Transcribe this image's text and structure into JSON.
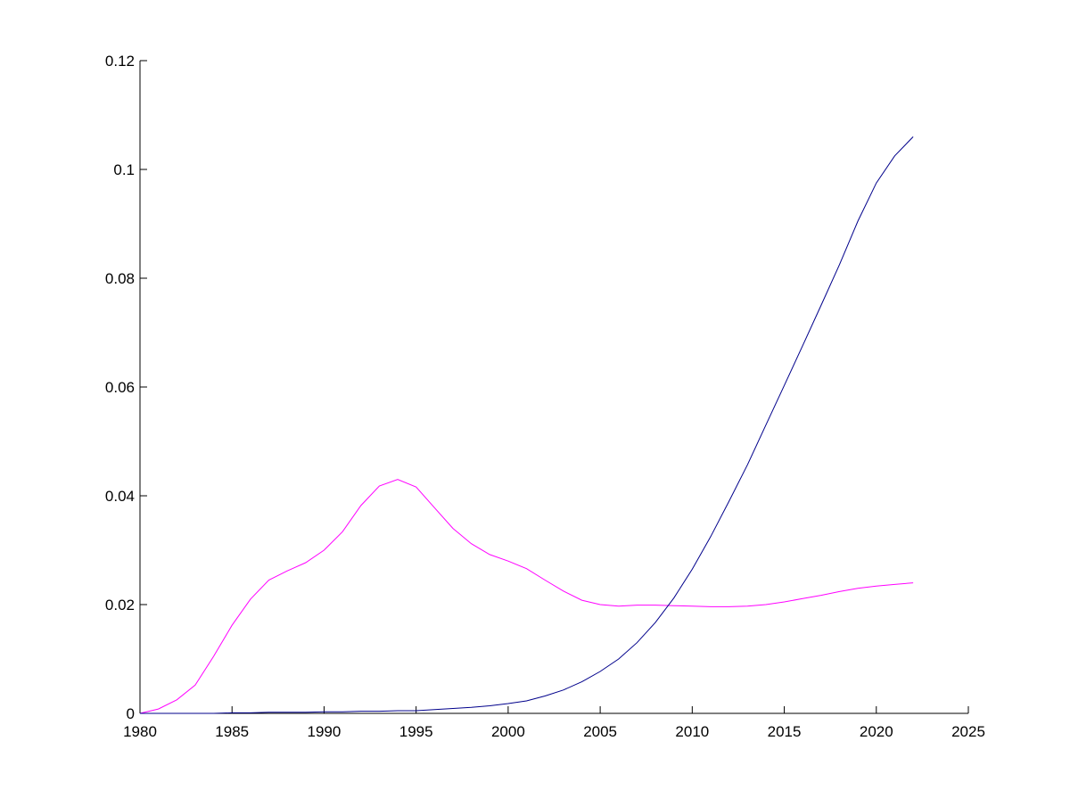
{
  "chart_data": {
    "type": "line",
    "title": "",
    "xlabel": "",
    "ylabel": "",
    "xlim": [
      1980,
      2025
    ],
    "ylim": [
      0,
      0.12
    ],
    "xticks": [
      1980,
      1985,
      1990,
      1995,
      2000,
      2005,
      2010,
      2015,
      2020,
      2025
    ],
    "yticks": [
      0,
      0.02,
      0.04,
      0.06,
      0.08,
      0.1,
      0.12
    ],
    "xtick_labels": [
      "1980",
      "1985",
      "1990",
      "1995",
      "2000",
      "2005",
      "2010",
      "2015",
      "2020",
      "2025"
    ],
    "ytick_labels": [
      "0",
      "0.02",
      "0.04",
      "0.06",
      "0.08",
      "0.1",
      "0.12"
    ],
    "grid": false,
    "legend": "none",
    "x": [
      1980,
      1981,
      1982,
      1983,
      1984,
      1985,
      1986,
      1987,
      1988,
      1989,
      1990,
      1991,
      1992,
      1993,
      1994,
      1995,
      1996,
      1997,
      1998,
      1999,
      2000,
      2001,
      2002,
      2003,
      2004,
      2005,
      2006,
      2007,
      2008,
      2009,
      2010,
      2011,
      2012,
      2013,
      2014,
      2015,
      2016,
      2017,
      2018,
      2019,
      2020,
      2021,
      2022
    ],
    "series": [
      {
        "color": "#ff00ff",
        "values": [
          0,
          0.0008,
          0.0025,
          0.0052,
          0.0105,
          0.0162,
          0.021,
          0.0245,
          0.0262,
          0.0277,
          0.03,
          0.0334,
          0.0382,
          0.0418,
          0.043,
          0.0416,
          0.0378,
          0.034,
          0.0312,
          0.0292,
          0.028,
          0.0266,
          0.0245,
          0.0225,
          0.0208,
          0.02,
          0.0197,
          0.0199,
          0.0199,
          0.0198,
          0.0197,
          0.0196,
          0.0196,
          0.0197,
          0.02,
          0.0205,
          0.0211,
          0.0217,
          0.0224,
          0.023,
          0.0234,
          0.0237,
          0.024
        ]
      },
      {
        "color": "#00008b",
        "values": [
          0,
          0,
          0,
          0,
          0,
          0.0001,
          0.0001,
          0.0002,
          0.0002,
          0.0002,
          0.0003,
          0.0003,
          0.0004,
          0.0004,
          0.0005,
          0.0005,
          0.0007,
          0.0009,
          0.0011,
          0.0014,
          0.0018,
          0.0023,
          0.0032,
          0.0043,
          0.0058,
          0.0077,
          0.01,
          0.013,
          0.0167,
          0.0212,
          0.0265,
          0.0325,
          0.039,
          0.0457,
          0.053,
          0.0603,
          0.0676,
          0.075,
          0.0825,
          0.0905,
          0.0975,
          0.1025,
          0.106
        ]
      }
    ]
  }
}
